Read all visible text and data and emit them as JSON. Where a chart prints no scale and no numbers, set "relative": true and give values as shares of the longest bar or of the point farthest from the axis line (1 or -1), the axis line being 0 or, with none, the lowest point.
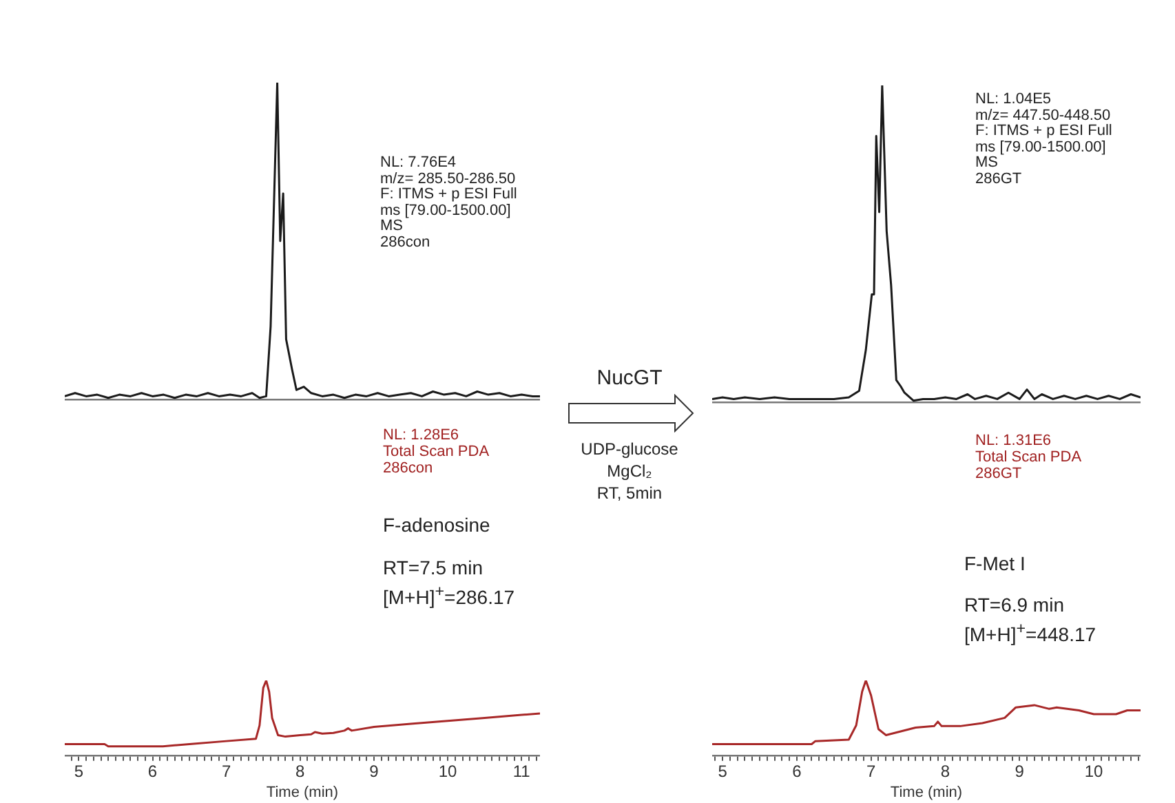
{
  "chart_data": [
    {
      "type": "line",
      "relative": true,
      "tick_labels": false,
      "marker": "none",
      "line_style": "solid",
      "xlim": [
        4.81,
        11.25
      ],
      "annotations": [
        "NL: 7.76E4",
        "m/z= 285.50-286.50",
        "F: ITMS + p ESI Full",
        "ms [79.00-1500.00]",
        "MS",
        "286con"
      ],
      "series": [
        {
          "color": "#1a1a1a",
          "x": [
            4.81,
            4.95,
            5.1,
            5.25,
            5.4,
            5.55,
            5.7,
            5.85,
            6.0,
            6.15,
            6.3,
            6.45,
            6.6,
            6.75,
            6.9,
            7.05,
            7.2,
            7.35,
            7.45,
            7.54,
            7.6,
            7.69,
            7.73,
            7.77,
            7.81,
            7.89,
            7.95,
            8.05,
            8.15,
            8.3,
            8.45,
            8.6,
            8.75,
            8.9,
            9.05,
            9.2,
            9.35,
            9.5,
            9.65,
            9.8,
            9.95,
            10.1,
            10.25,
            10.4,
            10.55,
            10.7,
            10.85,
            11.0,
            11.15,
            11.25
          ],
          "values": [
            0.01,
            0.02,
            0.01,
            0.015,
            0.005,
            0.015,
            0.01,
            0.02,
            0.01,
            0.015,
            0.005,
            0.015,
            0.01,
            0.02,
            0.01,
            0.015,
            0.01,
            0.02,
            0.005,
            0.01,
            0.23,
            1.0,
            0.5,
            0.65,
            0.19,
            0.095,
            0.03,
            0.04,
            0.02,
            0.01,
            0.015,
            0.005,
            0.015,
            0.01,
            0.02,
            0.01,
            0.015,
            0.02,
            0.01,
            0.025,
            0.015,
            0.02,
            0.01,
            0.025,
            0.015,
            0.02,
            0.01,
            0.015,
            0.01,
            0.01
          ]
        }
      ]
    },
    {
      "type": "line",
      "relative": true,
      "tick_labels": "x",
      "marker": "none",
      "line_style": "solid",
      "xlim": [
        4.81,
        11.25
      ],
      "xlabel": "Time (min)",
      "xticks": [
        {
          "value": 4.9,
          "label": null
        },
        5,
        {
          "value": 5.1,
          "label": null
        },
        {
          "value": 5.2,
          "label": null
        },
        {
          "value": 5.3,
          "label": null
        },
        {
          "value": 5.4,
          "label": null
        },
        {
          "value": 5.5,
          "label": null
        },
        {
          "value": 5.6,
          "label": null
        },
        {
          "value": 5.7,
          "label": null
        },
        {
          "value": 5.8,
          "label": null
        },
        {
          "value": 5.9,
          "label": null
        },
        6,
        {
          "value": 6.1,
          "label": null
        },
        {
          "value": 6.2,
          "label": null
        },
        {
          "value": 6.3,
          "label": null
        },
        {
          "value": 6.4,
          "label": null
        },
        {
          "value": 6.5,
          "label": null
        },
        {
          "value": 6.6,
          "label": null
        },
        {
          "value": 6.7,
          "label": null
        },
        {
          "value": 6.8,
          "label": null
        },
        {
          "value": 6.9,
          "label": null
        },
        7,
        {
          "value": 7.1,
          "label": null
        },
        {
          "value": 7.2,
          "label": null
        },
        {
          "value": 7.3,
          "label": null
        },
        {
          "value": 7.4,
          "label": null
        },
        {
          "value": 7.5,
          "label": null
        },
        {
          "value": 7.6,
          "label": null
        },
        {
          "value": 7.7,
          "label": null
        },
        {
          "value": 7.8,
          "label": null
        },
        {
          "value": 7.9,
          "label": null
        },
        8,
        {
          "value": 8.1,
          "label": null
        },
        {
          "value": 8.2,
          "label": null
        },
        {
          "value": 8.3,
          "label": null
        },
        {
          "value": 8.4,
          "label": null
        },
        {
          "value": 8.5,
          "label": null
        },
        {
          "value": 8.6,
          "label": null
        },
        {
          "value": 8.7,
          "label": null
        },
        {
          "value": 8.8,
          "label": null
        },
        {
          "value": 8.9,
          "label": null
        },
        9,
        {
          "value": 9.1,
          "label": null
        },
        {
          "value": 9.2,
          "label": null
        },
        {
          "value": 9.3,
          "label": null
        },
        {
          "value": 9.4,
          "label": null
        },
        {
          "value": 9.5,
          "label": null
        },
        {
          "value": 9.6,
          "label": null
        },
        {
          "value": 9.7,
          "label": null
        },
        {
          "value": 9.8,
          "label": null
        },
        {
          "value": 9.9,
          "label": null
        },
        10,
        {
          "value": 10.1,
          "label": null
        },
        {
          "value": 10.2,
          "label": null
        },
        {
          "value": 10.3,
          "label": null
        },
        {
          "value": 10.4,
          "label": null
        },
        {
          "value": 10.5,
          "label": null
        },
        {
          "value": 10.6,
          "label": null
        },
        {
          "value": 10.7,
          "label": null
        },
        {
          "value": 10.8,
          "label": null
        },
        {
          "value": 10.9,
          "label": null
        },
        11,
        {
          "value": 11.1,
          "label": null
        },
        {
          "value": 11.2,
          "label": null
        }
      ],
      "annotations": [
        "NL: 1.28E6",
        "Total Scan  PDA",
        "286con",
        "F-adenosine",
        "RT=7.5 min",
        "[M+H]$^{+}$=286.17"
      ],
      "series": [
        {
          "color": "#a82828",
          "x": [
            4.81,
            5.35,
            5.4,
            6.14,
            6.5,
            7.0,
            7.4,
            7.45,
            7.5,
            7.54,
            7.58,
            7.62,
            7.7,
            7.8,
            8.0,
            8.15,
            8.2,
            8.3,
            8.45,
            8.6,
            8.65,
            8.7,
            9.0,
            9.5,
            10.0,
            10.5,
            11.0,
            11.25
          ],
          "values": [
            0.15,
            0.15,
            0.12,
            0.12,
            0.15,
            0.19,
            0.22,
            0.4,
            0.9,
            1.0,
            0.85,
            0.5,
            0.27,
            0.25,
            0.27,
            0.28,
            0.31,
            0.29,
            0.3,
            0.33,
            0.36,
            0.33,
            0.38,
            0.42,
            0.46,
            0.5,
            0.54,
            0.56
          ]
        }
      ]
    },
    {
      "type": "other",
      "annotations": [
        "NucGT",
        "UDP-glucose",
        "MgCl₂",
        "RT, 5min"
      ]
    },
    {
      "type": "line",
      "relative": true,
      "tick_labels": false,
      "marker": "none",
      "line_style": "solid",
      "xlim": [
        4.86,
        10.63
      ],
      "annotations": [
        "NL: 1.04E5",
        "m/z= 447.50-448.50",
        "F: ITMS + p ESI Full",
        "ms [79.00-1500.00]",
        "MS",
        "286GT"
      ],
      "series": [
        {
          "color": "#1a1a1a",
          "x": [
            4.86,
            5.0,
            5.15,
            5.3,
            5.5,
            5.7,
            5.9,
            6.1,
            6.3,
            6.5,
            6.7,
            6.84,
            6.93,
            7.01,
            7.04,
            7.07,
            7.11,
            7.15,
            7.21,
            7.27,
            7.34,
            7.4,
            7.45,
            7.57,
            7.7,
            7.85,
            8.0,
            8.15,
            8.3,
            8.4,
            8.55,
            8.7,
            8.85,
            9.0,
            9.1,
            9.2,
            9.3,
            9.45,
            9.6,
            9.75,
            9.9,
            10.05,
            10.2,
            10.35,
            10.5,
            10.63
          ],
          "values": [
            0.01,
            0.015,
            0.01,
            0.015,
            0.01,
            0.015,
            0.01,
            0.01,
            0.01,
            0.01,
            0.015,
            0.036,
            0.165,
            0.34,
            0.34,
            0.84,
            0.6,
            1.0,
            0.54,
            0.37,
            0.07,
            0.05,
            0.03,
            0.005,
            0.01,
            0.01,
            0.015,
            0.01,
            0.025,
            0.01,
            0.02,
            0.01,
            0.03,
            0.01,
            0.04,
            0.01,
            0.025,
            0.01,
            0.02,
            0.01,
            0.02,
            0.01,
            0.02,
            0.01,
            0.025,
            0.015
          ]
        }
      ]
    },
    {
      "type": "line",
      "relative": true,
      "tick_labels": "x",
      "marker": "none",
      "line_style": "solid",
      "xlim": [
        4.86,
        10.63
      ],
      "xlabel": "Time (min)",
      "xticks": [
        {
          "value": 4.9,
          "label": null
        },
        5,
        {
          "value": 5.1,
          "label": null
        },
        {
          "value": 5.2,
          "label": null
        },
        {
          "value": 5.3,
          "label": null
        },
        {
          "value": 5.4,
          "label": null
        },
        {
          "value": 5.5,
          "label": null
        },
        {
          "value": 5.6,
          "label": null
        },
        {
          "value": 5.7,
          "label": null
        },
        {
          "value": 5.8,
          "label": null
        },
        {
          "value": 5.9,
          "label": null
        },
        6,
        {
          "value": 6.1,
          "label": null
        },
        {
          "value": 6.2,
          "label": null
        },
        {
          "value": 6.3,
          "label": null
        },
        {
          "value": 6.4,
          "label": null
        },
        {
          "value": 6.5,
          "label": null
        },
        {
          "value": 6.6,
          "label": null
        },
        {
          "value": 6.7,
          "label": null
        },
        {
          "value": 6.8,
          "label": null
        },
        {
          "value": 6.9,
          "label": null
        },
        7,
        {
          "value": 7.1,
          "label": null
        },
        {
          "value": 7.2,
          "label": null
        },
        {
          "value": 7.3,
          "label": null
        },
        {
          "value": 7.4,
          "label": null
        },
        {
          "value": 7.5,
          "label": null
        },
        {
          "value": 7.6,
          "label": null
        },
        {
          "value": 7.7,
          "label": null
        },
        {
          "value": 7.8,
          "label": null
        },
        {
          "value": 7.9,
          "label": null
        },
        8,
        {
          "value": 8.1,
          "label": null
        },
        {
          "value": 8.2,
          "label": null
        },
        {
          "value": 8.3,
          "label": null
        },
        {
          "value": 8.4,
          "label": null
        },
        {
          "value": 8.5,
          "label": null
        },
        {
          "value": 8.6,
          "label": null
        },
        {
          "value": 8.7,
          "label": null
        },
        {
          "value": 8.8,
          "label": null
        },
        {
          "value": 8.9,
          "label": null
        },
        9,
        {
          "value": 9.1,
          "label": null
        },
        {
          "value": 9.2,
          "label": null
        },
        {
          "value": 9.3,
          "label": null
        },
        {
          "value": 9.4,
          "label": null
        },
        {
          "value": 9.5,
          "label": null
        },
        {
          "value": 9.6,
          "label": null
        },
        {
          "value": 9.7,
          "label": null
        },
        {
          "value": 9.8,
          "label": null
        },
        {
          "value": 9.9,
          "label": null
        },
        10,
        {
          "value": 10.1,
          "label": null
        },
        {
          "value": 10.2,
          "label": null
        },
        {
          "value": 10.3,
          "label": null
        },
        {
          "value": 10.4,
          "label": null
        },
        {
          "value": 10.5,
          "label": null
        },
        {
          "value": 10.6,
          "label": null
        }
      ],
      "annotations": [
        "NL: 1.31E6",
        "Total Scan  PDA",
        "286GT",
        "F-Met I",
        "RT=6.9 min",
        "[M+H]$^{+}$=448.17"
      ],
      "series": [
        {
          "color": "#a82828",
          "x": [
            4.86,
            6.2,
            6.25,
            6.7,
            6.8,
            6.88,
            6.93,
            7.0,
            7.1,
            7.2,
            7.6,
            7.85,
            7.9,
            7.95,
            8.2,
            8.5,
            8.8,
            8.95,
            9.2,
            9.4,
            9.5,
            9.8,
            10.0,
            10.3,
            10.45,
            10.63
          ],
          "values": [
            0.15,
            0.15,
            0.19,
            0.21,
            0.4,
            0.85,
            1.0,
            0.8,
            0.35,
            0.27,
            0.37,
            0.39,
            0.45,
            0.39,
            0.39,
            0.43,
            0.5,
            0.64,
            0.67,
            0.62,
            0.64,
            0.6,
            0.55,
            0.55,
            0.6,
            0.6
          ]
        }
      ]
    }
  ]
}
